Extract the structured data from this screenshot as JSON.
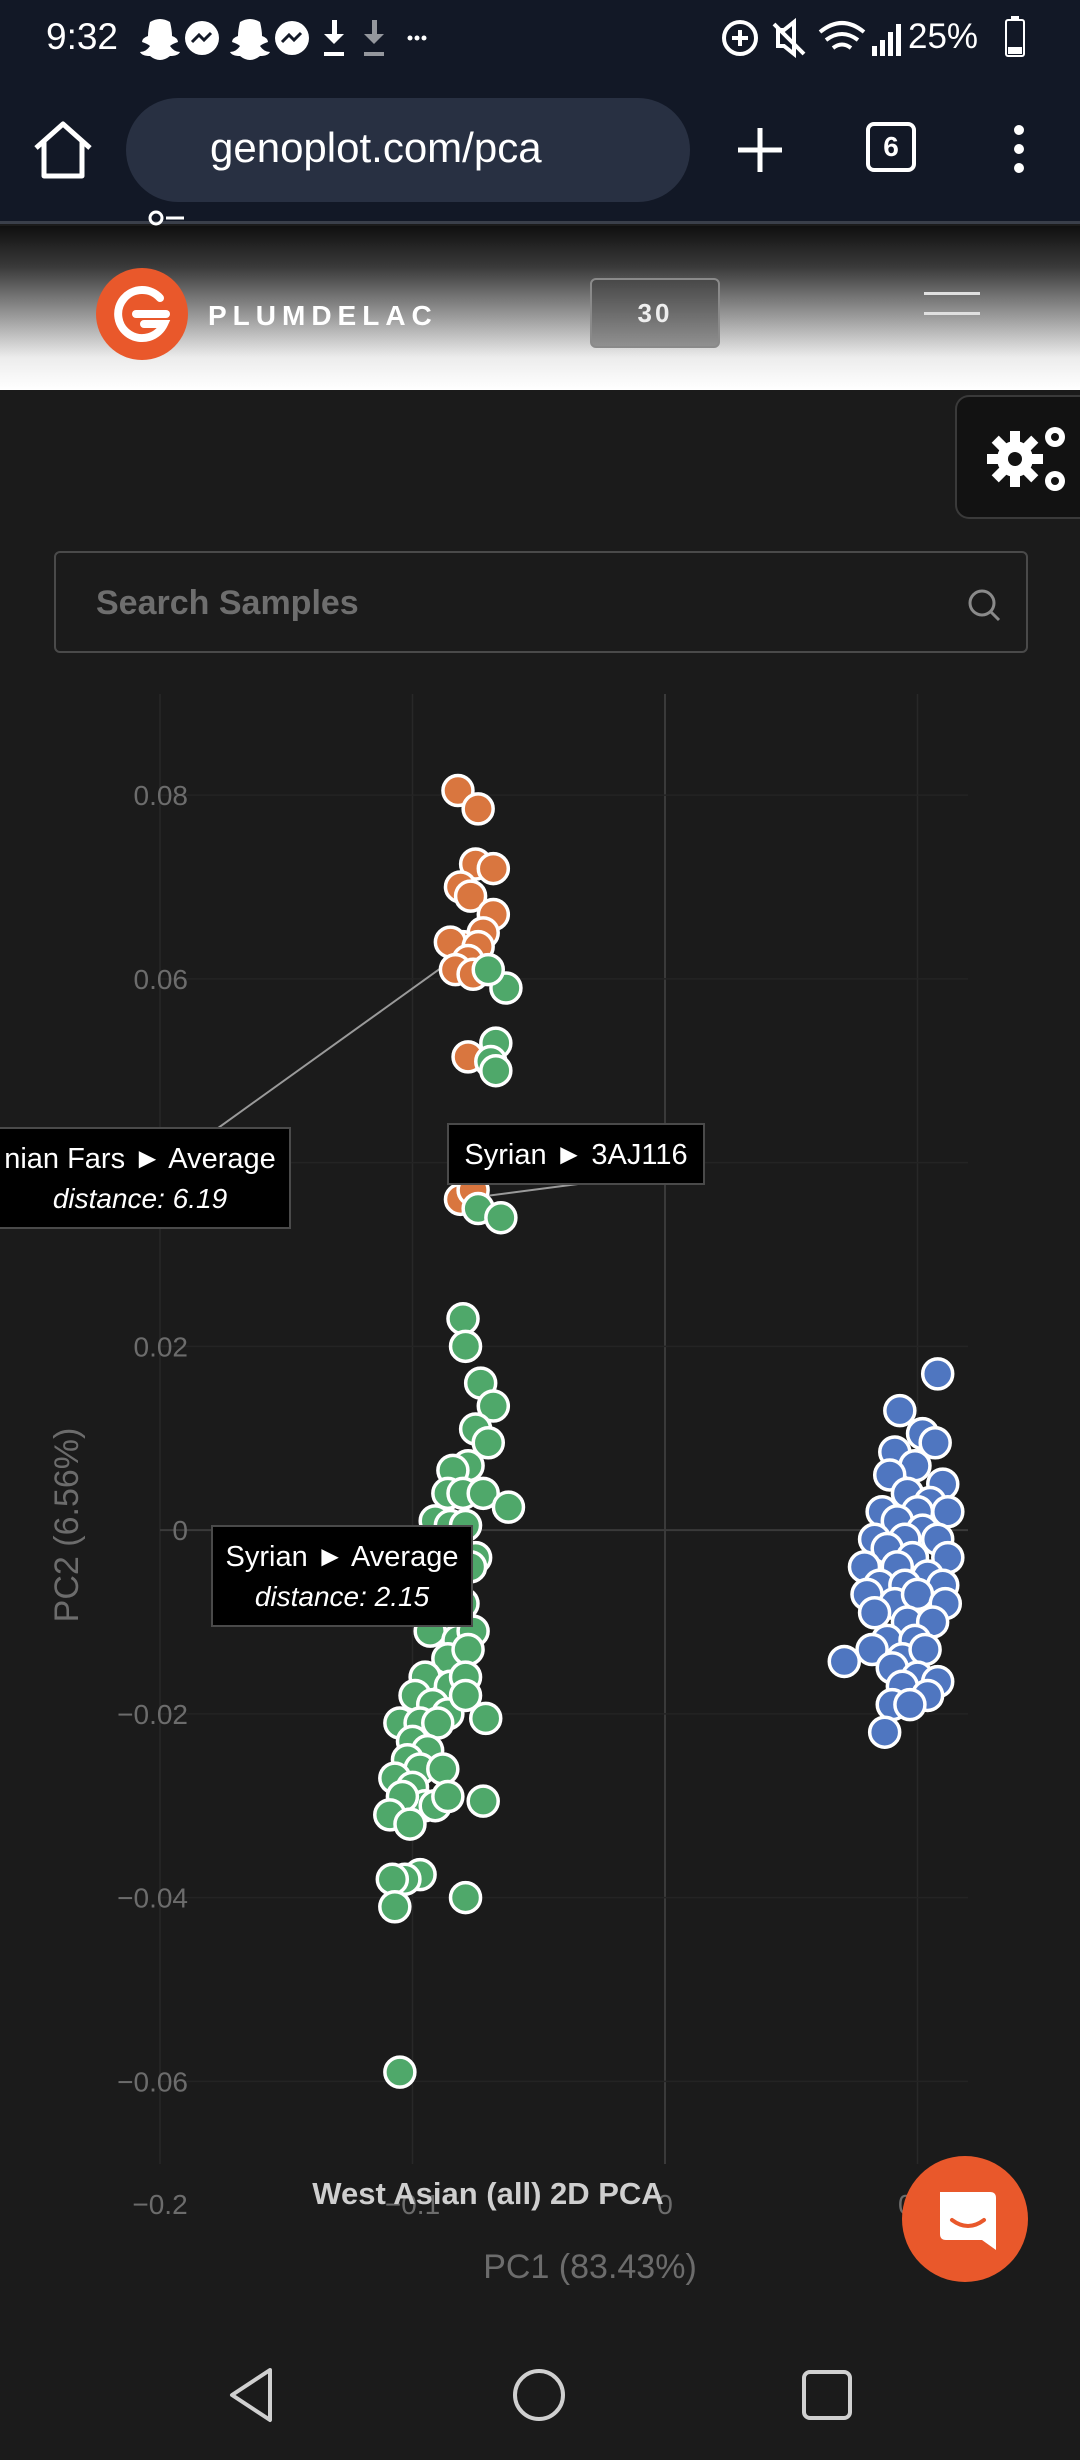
{
  "status_bar": {
    "time": "9:32",
    "battery": "25%",
    "icons": [
      "snapchat-icon",
      "messenger-icon",
      "snapchat-icon",
      "messenger-icon",
      "download-icon",
      "download-icon",
      "more-notifications-icon",
      "data-saver-icon",
      "mute-icon",
      "wifi-icon",
      "signal-icon",
      "battery-icon"
    ]
  },
  "browser": {
    "url": "genoplot.com/pca",
    "tab_count": "6",
    "icons": [
      "home-icon",
      "site-info-icon",
      "new-tab-icon",
      "tabs-icon",
      "overflow-menu-icon"
    ]
  },
  "site_header": {
    "brand": "PLUMDELAC",
    "count_badge": "30",
    "accent_color": "#e9582b"
  },
  "search": {
    "placeholder": "Search Samples",
    "value": ""
  },
  "chart_data": {
    "type": "scatter",
    "title": "West Asian (all) 2D PCA",
    "xlabel": "PC1 (83.43%)",
    "ylabel": "PC2 (6.56%)",
    "xlim": [
      -0.2,
      0.12
    ],
    "ylim": [
      -0.069,
      0.091
    ],
    "x_ticks": [
      "−0.2",
      "−0.1",
      "0",
      "0.1"
    ],
    "y_ticks": [
      {
        "value": 0.08,
        "label": "0.08"
      },
      {
        "value": 0.06,
        "label": "0.06"
      },
      {
        "value": 0.02,
        "label": "0.02"
      },
      {
        "value": 0,
        "label": "0"
      },
      {
        "value": -0.02,
        "label": "−0.02"
      },
      {
        "value": -0.04,
        "label": "−0.04"
      },
      {
        "value": -0.06,
        "label": "−0.06"
      }
    ],
    "grid": true,
    "series": [
      {
        "color": "#d9763f",
        "points": [
          [
            -0.082,
            0.0805
          ],
          [
            -0.074,
            0.0785
          ],
          [
            -0.075,
            0.0725
          ],
          [
            -0.068,
            0.072
          ],
          [
            -0.081,
            0.07
          ],
          [
            -0.077,
            0.069
          ],
          [
            -0.068,
            0.067
          ],
          [
            -0.072,
            0.065
          ],
          [
            -0.08,
            0.0635
          ],
          [
            -0.085,
            0.064
          ],
          [
            -0.074,
            0.0635
          ],
          [
            -0.078,
            0.062
          ],
          [
            -0.083,
            0.061
          ],
          [
            -0.076,
            0.0605
          ],
          [
            -0.078,
            0.0515
          ],
          [
            -0.081,
            0.036
          ],
          [
            -0.076,
            0.037
          ]
        ]
      },
      {
        "color": "#4fa86a",
        "points": [
          [
            -0.063,
            0.059
          ],
          [
            -0.07,
            0.061
          ],
          [
            -0.067,
            0.053
          ],
          [
            -0.069,
            0.051
          ],
          [
            -0.067,
            0.05
          ],
          [
            -0.07,
            0.0395
          ],
          [
            -0.074,
            0.035
          ],
          [
            -0.065,
            0.034
          ],
          [
            -0.08,
            0.023
          ],
          [
            -0.079,
            0.02
          ],
          [
            -0.073,
            0.016
          ],
          [
            -0.068,
            0.0135
          ],
          [
            -0.075,
            0.011
          ],
          [
            -0.07,
            0.0095
          ],
          [
            -0.078,
            0.007
          ],
          [
            -0.084,
            0.0065
          ],
          [
            -0.086,
            0.004
          ],
          [
            -0.08,
            0.004
          ],
          [
            -0.072,
            0.004
          ],
          [
            -0.062,
            0.0025
          ],
          [
            -0.091,
            0.001
          ],
          [
            -0.085,
            0.0005
          ],
          [
            -0.079,
            0.0005
          ],
          [
            -0.083,
            -0.002
          ],
          [
            -0.075,
            -0.003
          ],
          [
            -0.077,
            -0.004
          ],
          [
            -0.086,
            -0.005
          ],
          [
            -0.08,
            -0.008
          ],
          [
            -0.088,
            -0.01
          ],
          [
            -0.093,
            -0.011
          ],
          [
            -0.082,
            -0.012
          ],
          [
            -0.076,
            -0.011
          ],
          [
            -0.086,
            -0.014
          ],
          [
            -0.078,
            -0.013
          ],
          [
            -0.095,
            -0.016
          ],
          [
            -0.085,
            -0.017
          ],
          [
            -0.079,
            -0.016
          ],
          [
            -0.099,
            -0.018
          ],
          [
            -0.092,
            -0.019
          ],
          [
            -0.086,
            -0.02
          ],
          [
            -0.079,
            -0.018
          ],
          [
            -0.105,
            -0.021
          ],
          [
            -0.097,
            -0.021
          ],
          [
            -0.09,
            -0.021
          ],
          [
            -0.071,
            -0.0205
          ],
          [
            -0.1,
            -0.023
          ],
          [
            -0.094,
            -0.024
          ],
          [
            -0.102,
            -0.025
          ],
          [
            -0.097,
            -0.026
          ],
          [
            -0.088,
            -0.026
          ],
          [
            -0.107,
            -0.027
          ],
          [
            -0.1,
            -0.028
          ],
          [
            -0.095,
            -0.03
          ],
          [
            -0.104,
            -0.029
          ],
          [
            -0.091,
            -0.03
          ],
          [
            -0.109,
            -0.031
          ],
          [
            -0.101,
            -0.032
          ],
          [
            -0.086,
            -0.029
          ],
          [
            -0.072,
            -0.0295
          ],
          [
            -0.097,
            -0.0375
          ],
          [
            -0.103,
            -0.038
          ],
          [
            -0.108,
            -0.038
          ],
          [
            -0.107,
            -0.041
          ],
          [
            -0.079,
            -0.04
          ],
          [
            -0.105,
            -0.059
          ]
        ]
      },
      {
        "color": "#4f76c0",
        "points": [
          [
            0.108,
            0.017
          ],
          [
            0.093,
            0.013
          ],
          [
            0.102,
            0.0105
          ],
          [
            0.107,
            0.0095
          ],
          [
            0.091,
            0.0085
          ],
          [
            0.099,
            0.007
          ],
          [
            0.089,
            0.006
          ],
          [
            0.11,
            0.005
          ],
          [
            0.096,
            0.004
          ],
          [
            0.105,
            0.003
          ],
          [
            0.086,
            0.002
          ],
          [
            0.1,
            0.002
          ],
          [
            0.112,
            0.002
          ],
          [
            0.092,
            0.001
          ],
          [
            0.102,
            0.0
          ],
          [
            0.083,
            -0.001
          ],
          [
            0.095,
            -0.001
          ],
          [
            0.108,
            -0.001
          ],
          [
            0.088,
            -0.002
          ],
          [
            0.098,
            -0.003
          ],
          [
            0.112,
            -0.003
          ],
          [
            0.079,
            -0.004
          ],
          [
            0.092,
            -0.004
          ],
          [
            0.104,
            -0.005
          ],
          [
            0.085,
            -0.006
          ],
          [
            0.095,
            -0.006
          ],
          [
            0.11,
            -0.006
          ],
          [
            0.08,
            -0.007
          ],
          [
            0.091,
            -0.008
          ],
          [
            0.1,
            -0.007
          ],
          [
            0.111,
            -0.008
          ],
          [
            0.083,
            -0.009
          ],
          [
            0.096,
            -0.01
          ],
          [
            0.106,
            -0.01
          ],
          [
            0.088,
            -0.012
          ],
          [
            0.099,
            -0.012
          ],
          [
            0.082,
            -0.013
          ],
          [
            0.094,
            -0.014
          ],
          [
            0.103,
            -0.013
          ],
          [
            0.071,
            -0.0143
          ],
          [
            0.09,
            -0.015
          ],
          [
            0.1,
            -0.016
          ],
          [
            0.108,
            -0.0165
          ],
          [
            0.094,
            -0.017
          ],
          [
            0.104,
            -0.018
          ],
          [
            0.09,
            -0.019
          ],
          [
            0.097,
            -0.019
          ],
          [
            0.087,
            -0.022
          ]
        ]
      }
    ],
    "annotations": [
      {
        "line1": "nian Fars ► Average",
        "line2": "distance: 6.19",
        "target": [
          -0.082,
          0.0625
        ]
      },
      {
        "line1": "Syrian ► 3AJ116",
        "line2": "",
        "target": [
          -0.081,
          0.036
        ]
      },
      {
        "line1": "Syrian ► Average",
        "line2": "distance: 2.15",
        "target": [
          -0.09,
          -0.0105
        ]
      }
    ]
  }
}
